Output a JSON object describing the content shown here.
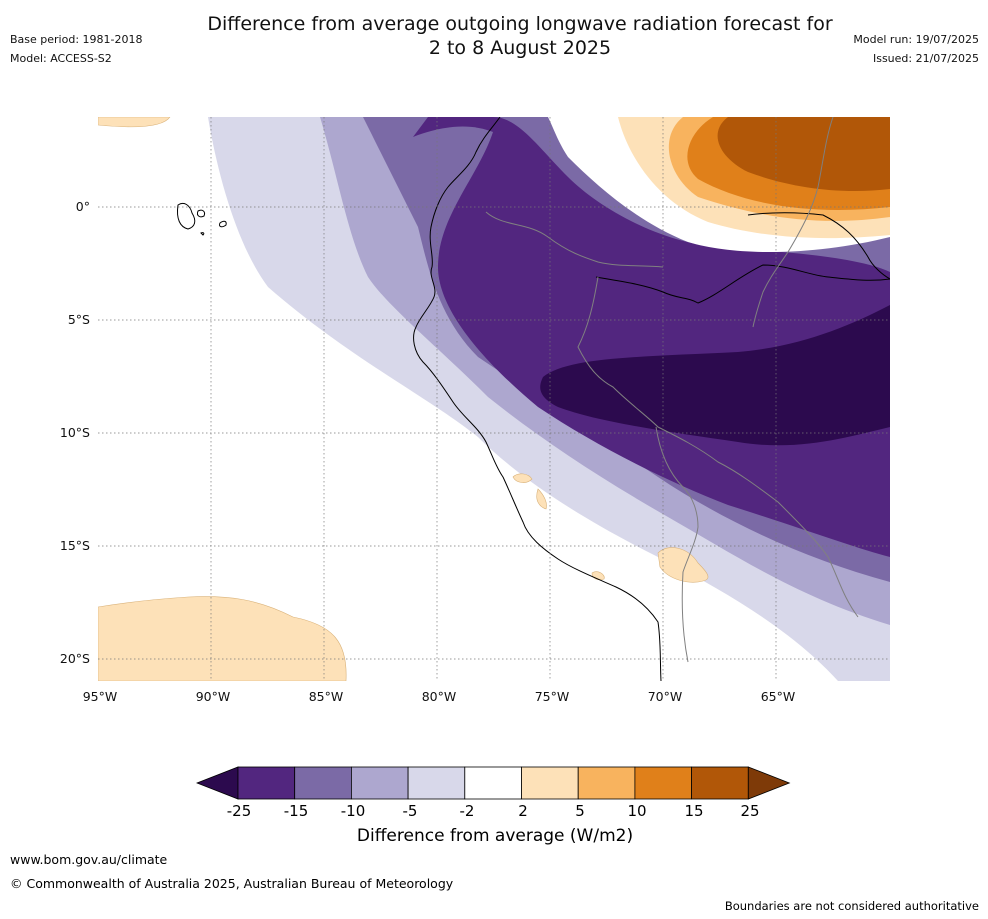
{
  "title_line1": "Difference from average outgoing longwave radiation forecast for",
  "title_line2": "2 to 8 August 2025",
  "meta_left": {
    "base_period": "Base period: 1981-2018",
    "model": "Model: ACCESS-S2"
  },
  "meta_right": {
    "model_run": "Model run: 19/07/2025",
    "issued": "Issued: 21/07/2025"
  },
  "map": {
    "lat_ticks": [
      "0°",
      "5°S",
      "10°S",
      "15°S",
      "20°S"
    ],
    "lon_ticks": [
      "95°W",
      "90°W",
      "85°W",
      "80°W",
      "75°W",
      "70°W",
      "65°W"
    ]
  },
  "colorbar": {
    "title": "Difference from average (W/m2)",
    "labels": [
      "-25",
      "-15",
      "-10",
      "-5",
      "-2",
      "2",
      "5",
      "10",
      "15",
      "25"
    ],
    "colors": [
      "#2c0a4e",
      "#52267f",
      "#7b6aa6",
      "#ada7cf",
      "#d8d8ea",
      "#ffffff",
      "#fde1b8",
      "#f8b35e",
      "#e0801a",
      "#b15708",
      "#7e3a08"
    ]
  },
  "footer": {
    "url": "www.bom.gov.au/climate",
    "copyright": "© Commonwealth of Australia 2025, Australian Bureau of Meteorology",
    "disclaimer": "Boundaries are not considered authoritative"
  }
}
